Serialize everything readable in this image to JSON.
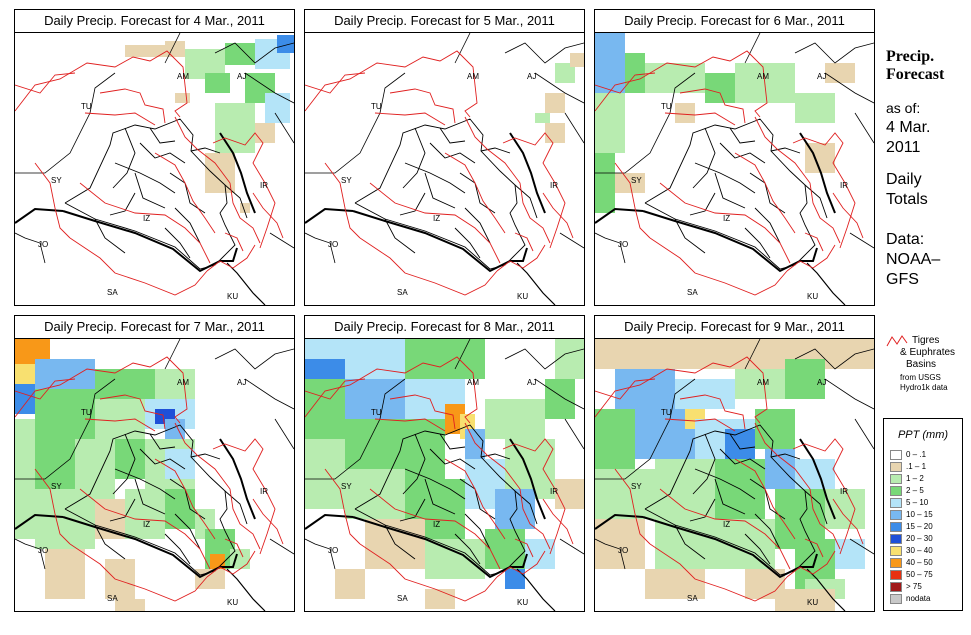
{
  "panels": [
    {
      "title": "Daily Precip. Forecast for  4 Mar., 2011",
      "day": 4
    },
    {
      "title": "Daily Precip. Forecast for  5 Mar., 2011",
      "day": 5
    },
    {
      "title": "Daily Precip. Forecast for  6 Mar., 2011",
      "day": 6
    },
    {
      "title": "Daily Precip. Forecast for  7 Mar., 2011",
      "day": 7
    },
    {
      "title": "Daily Precip. Forecast for  8 Mar., 2011",
      "day": 8
    },
    {
      "title": "Daily Precip. Forecast for  9 Mar., 2011",
      "day": 9
    }
  ],
  "map_labels": {
    "am": "AM",
    "aj": "AJ",
    "tu": "TU",
    "sy": "SY",
    "ir": "IR",
    "iz": "IZ",
    "jo": "JO",
    "sa": "SA",
    "ku": "KU"
  },
  "sidebar": {
    "title_line1": "Precip.",
    "title_line2": "Forecast",
    "asof_line1": "as of:",
    "asof_line2": "4 Mar.",
    "asof_line3": "2011",
    "daily_line1": "Daily",
    "daily_line2": "Totals",
    "data_line1": "Data:",
    "data_line2": "NOAA–",
    "data_line3": "GFS"
  },
  "basin_legend": {
    "line1": "Tigres",
    "line2": "& Euphrates",
    "line3": "Basins",
    "line4": "from USGS",
    "line5": "Hydro1k data",
    "color": "#e02020"
  },
  "ppt_legend": {
    "title": "PPT (mm)",
    "classes": [
      {
        "label": "0 – .1",
        "color": "#ffffff"
      },
      {
        "label": ".1 – 1",
        "color": "#e8d5b0"
      },
      {
        "label": "1 – 2",
        "color": "#b8ecb0"
      },
      {
        "label": "2 – 5",
        "color": "#78d878"
      },
      {
        "label": "5 – 10",
        "color": "#b4e4f8"
      },
      {
        "label": "10 – 15",
        "color": "#78b8f0"
      },
      {
        "label": "15 – 20",
        "color": "#3c8ce8"
      },
      {
        "label": "20 – 30",
        "color": "#1e50d8"
      },
      {
        "label": "30 – 40",
        "color": "#f8e070"
      },
      {
        "label": "40 – 50",
        "color": "#f89818"
      },
      {
        "label": "50 – 75",
        "color": "#e83010"
      },
      {
        "label": "> 75",
        "color": "#a01818"
      },
      {
        "label": "nodata",
        "color": "#c8c8c8"
      }
    ]
  }
}
